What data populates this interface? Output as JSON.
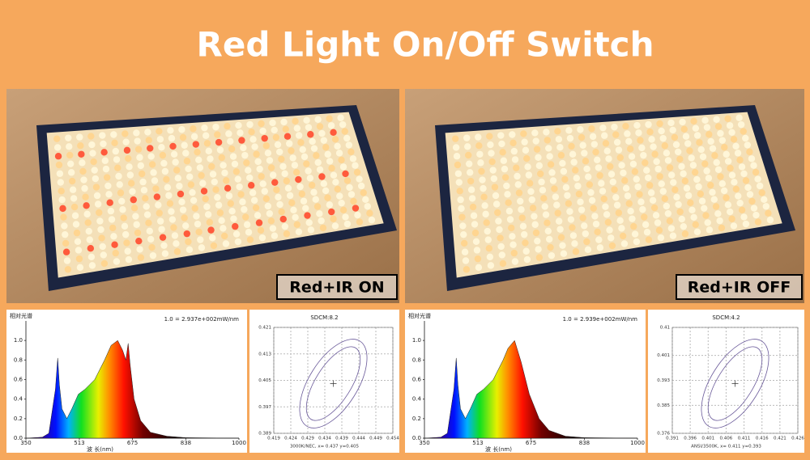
{
  "title": "Red Light On/Off Switch",
  "panels": [
    {
      "label": "Red+IR ON",
      "spectrum": {
        "title": "相对光谱",
        "note": "1.0 = 2.937e+002mW/nm",
        "xlabel": "波 长(nm)",
        "xlim": [
          350,
          1000
        ],
        "ylim": [
          0,
          1.2
        ],
        "xticks": [
          350,
          513,
          675,
          838,
          1000
        ],
        "yticks": [
          {
            "value": 0,
            "label": "0.0"
          },
          0.2,
          0.4,
          0.6,
          0.8,
          {
            "value": 1,
            "label": "1.0"
          }
        ],
        "x": [
          350,
          400,
          420,
          440,
          447,
          452,
          460,
          475,
          490,
          510,
          530,
          560,
          590,
          610,
          630,
          645,
          655,
          662,
          668,
          680,
          700,
          730,
          780,
          838,
          1000
        ],
        "y": [
          0,
          0.01,
          0.05,
          0.5,
          0.82,
          0.55,
          0.3,
          0.2,
          0.3,
          0.45,
          0.5,
          0.6,
          0.8,
          0.95,
          1.0,
          0.9,
          0.8,
          0.97,
          0.75,
          0.4,
          0.18,
          0.06,
          0.02,
          0.005,
          0
        ]
      },
      "sdcm": {
        "title": "SDCM:8.2",
        "caption": "3000K/NEC, x= 0.437 y=0.405",
        "xlim": [
          0.419,
          0.454
        ],
        "ylim": [
          0.389,
          0.421
        ],
        "xticks": [
          0.419,
          0.424,
          0.429,
          0.434,
          0.439,
          0.444,
          0.449,
          0.454
        ],
        "yticks": [
          0.389,
          0.397,
          0.405,
          0.413,
          0.421
        ]
      }
    },
    {
      "label": "Red+IR OFF",
      "spectrum": {
        "title": "相对光谱",
        "note": "1.0 = 2.939e+002mW/nm",
        "xlabel": "波 长(nm)",
        "xlim": [
          350,
          1000
        ],
        "ylim": [
          0,
          1.2
        ],
        "xticks": [
          350,
          513,
          675,
          838,
          1000
        ],
        "yticks": [
          {
            "value": 0,
            "label": "0.0"
          },
          0.2,
          0.4,
          0.6,
          0.8,
          {
            "value": 1,
            "label": "1.0"
          }
        ],
        "x": [
          350,
          400,
          420,
          440,
          447,
          452,
          460,
          475,
          490,
          510,
          530,
          560,
          590,
          605,
          625,
          645,
          670,
          700,
          730,
          780,
          838,
          1000
        ],
        "y": [
          0,
          0.01,
          0.05,
          0.5,
          0.82,
          0.55,
          0.3,
          0.2,
          0.3,
          0.45,
          0.5,
          0.6,
          0.8,
          0.92,
          1.0,
          0.78,
          0.45,
          0.2,
          0.08,
          0.02,
          0.005,
          0
        ]
      },
      "sdcm": {
        "title": "SDCM:4.2",
        "caption": "ANSI/3500K, x= 0.411 y=0.393",
        "xlim": [
          0.391,
          0.426
        ],
        "ylim": [
          0.376,
          0.41
        ],
        "xticks": [
          0.391,
          0.396,
          0.401,
          0.406,
          0.411,
          0.416,
          0.421,
          0.426
        ],
        "yticks": [
          0.376,
          0.385,
          0.393,
          0.401,
          0.41
        ]
      }
    }
  ]
}
